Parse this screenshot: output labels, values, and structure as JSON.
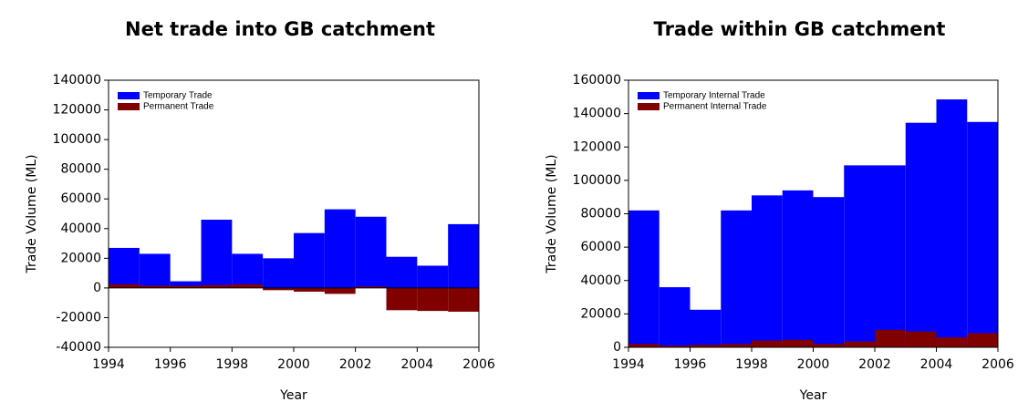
{
  "chart_data": [
    {
      "type": "histogram",
      "title": "Net trade into GB catchment",
      "xlabel": "Year",
      "ylabel": "Trade Volume (ML)",
      "bins": [
        1994,
        1995,
        1996,
        1997,
        1998,
        1999,
        2000,
        2001,
        2002,
        2003,
        2004,
        2005,
        2006
      ],
      "series": [
        {
          "name": "Temporary Trade",
          "color": "#0000ff",
          "values": [
            27000,
            23000,
            4500,
            46000,
            23000,
            20000,
            37000,
            53000,
            48000,
            21000,
            15000,
            43000
          ]
        },
        {
          "name": "Permanent Trade",
          "color": "#800000",
          "values": [
            2500,
            1500,
            1500,
            2000,
            2500,
            -1500,
            -2500,
            -4000,
            1000,
            -15000,
            -15500,
            -16000
          ]
        }
      ],
      "xlim": [
        1994,
        2006
      ],
      "xticks": [
        1994,
        1996,
        1998,
        2000,
        2002,
        2004,
        2006
      ],
      "ylim": [
        -40000,
        140000
      ],
      "yticks": [
        -40000,
        -20000,
        0,
        20000,
        40000,
        60000,
        80000,
        100000,
        120000,
        140000
      ]
    },
    {
      "type": "histogram",
      "title": "Trade within GB catchment",
      "xlabel": "Year",
      "ylabel": "Trade Volume (ML)",
      "bins": [
        1994,
        1995,
        1996,
        1997,
        1998,
        1999,
        2000,
        2001,
        2002,
        2003,
        2004,
        2005,
        2006
      ],
      "series": [
        {
          "name": "Temporary Internal Trade",
          "color": "#0000ff",
          "values": [
            82000,
            36000,
            22500,
            82000,
            91000,
            94000,
            90000,
            109000,
            109000,
            134500,
            148500,
            135000
          ]
        },
        {
          "name": "Permanent Internal Trade",
          "color": "#800000",
          "values": [
            2000,
            1000,
            1500,
            2000,
            4000,
            4500,
            2000,
            3500,
            10500,
            9500,
            6000,
            8500
          ]
        }
      ],
      "xlim": [
        1994,
        2006
      ],
      "xticks": [
        1994,
        1996,
        1998,
        2000,
        2002,
        2004,
        2006
      ],
      "ylim": [
        0,
        160000
      ],
      "yticks": [
        0,
        20000,
        40000,
        60000,
        80000,
        100000,
        120000,
        140000,
        160000
      ]
    }
  ]
}
